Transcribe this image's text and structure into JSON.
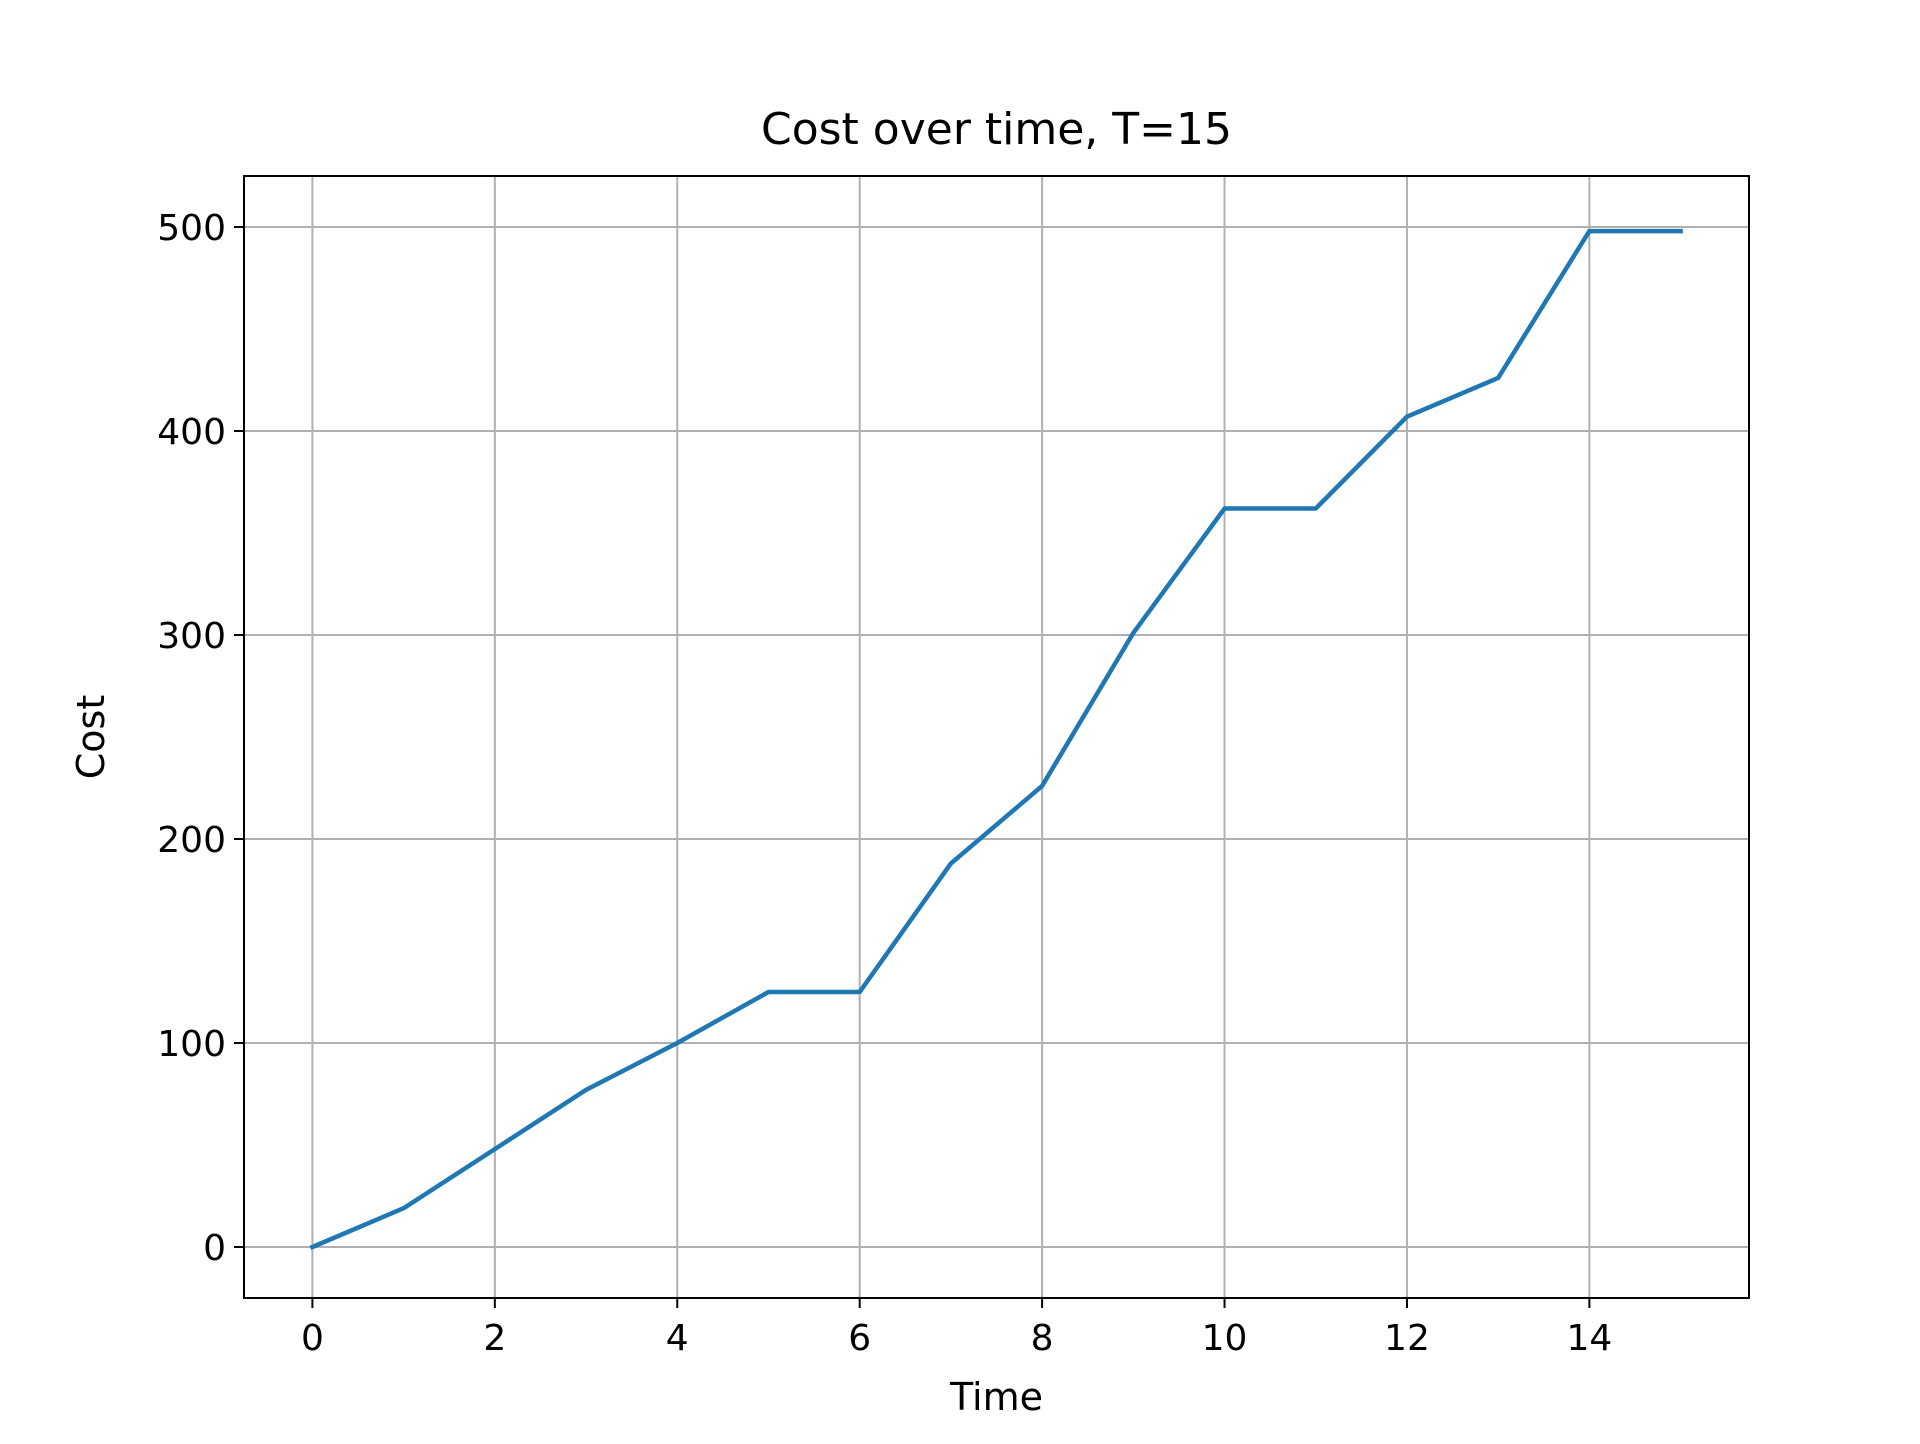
{
  "chart_data": {
    "type": "line",
    "title": "Cost over time, T=15",
    "xlabel": "Time",
    "ylabel": "Cost",
    "xlim": [
      -0.75,
      15.75
    ],
    "ylim": [
      -25,
      525
    ],
    "xticks": [
      0,
      2,
      4,
      6,
      8,
      10,
      12,
      14
    ],
    "yticks": [
      0,
      100,
      200,
      300,
      400,
      500
    ],
    "grid": true,
    "legend": "none",
    "series": [
      {
        "color": "#1f77b4",
        "x": [
          0,
          1,
          2,
          3,
          4,
          5,
          6,
          7,
          8,
          9,
          10,
          11,
          12,
          13,
          14,
          15
        ],
        "y": [
          0,
          19,
          48,
          77,
          100,
          125,
          125,
          188,
          226,
          301,
          362,
          362,
          407,
          426,
          498,
          498
        ]
      }
    ]
  }
}
